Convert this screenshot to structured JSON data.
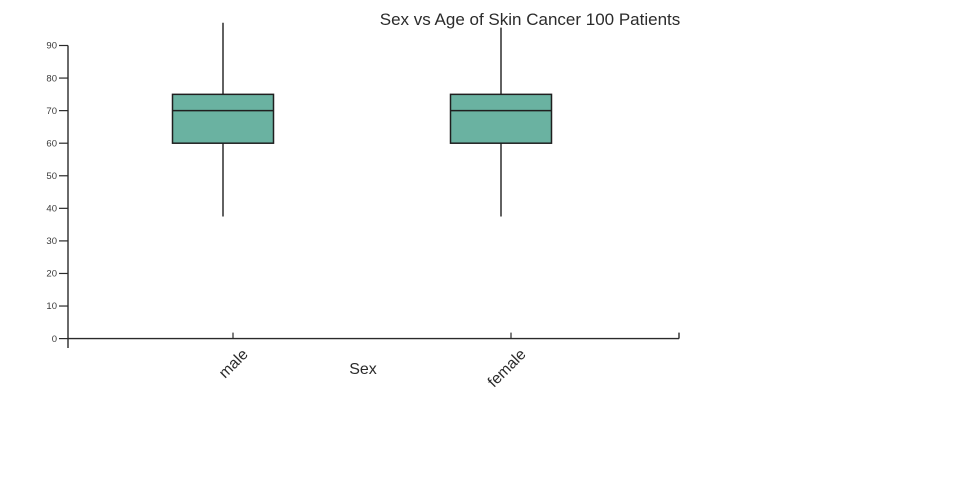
{
  "page": {
    "background": "#ffffff"
  },
  "chart_data": {
    "type": "box",
    "title": "Sex vs Age of Skin Cancer 100 Patients",
    "xlabel": "Sex",
    "ylabel": "",
    "categories": [
      "male",
      "female"
    ],
    "series": [
      {
        "category": "male",
        "min": 37.5,
        "q1": 60,
        "median": 70,
        "q3": 75,
        "max": 97
      },
      {
        "category": "female",
        "min": 37.5,
        "q1": 60,
        "median": 70,
        "q3": 75,
        "max": 95.5
      }
    ],
    "yticks": [
      0,
      10,
      20,
      30,
      40,
      50,
      60,
      70,
      80,
      90
    ],
    "ylim": [
      0,
      90
    ],
    "grid": false,
    "legend": false,
    "colors": {
      "box_fill": "#6ab2a1",
      "box_stroke": "#1f1f1f",
      "whisker": "#1f1f1f",
      "axis": "#2a2a2a",
      "text": "#2b2b2b"
    }
  }
}
